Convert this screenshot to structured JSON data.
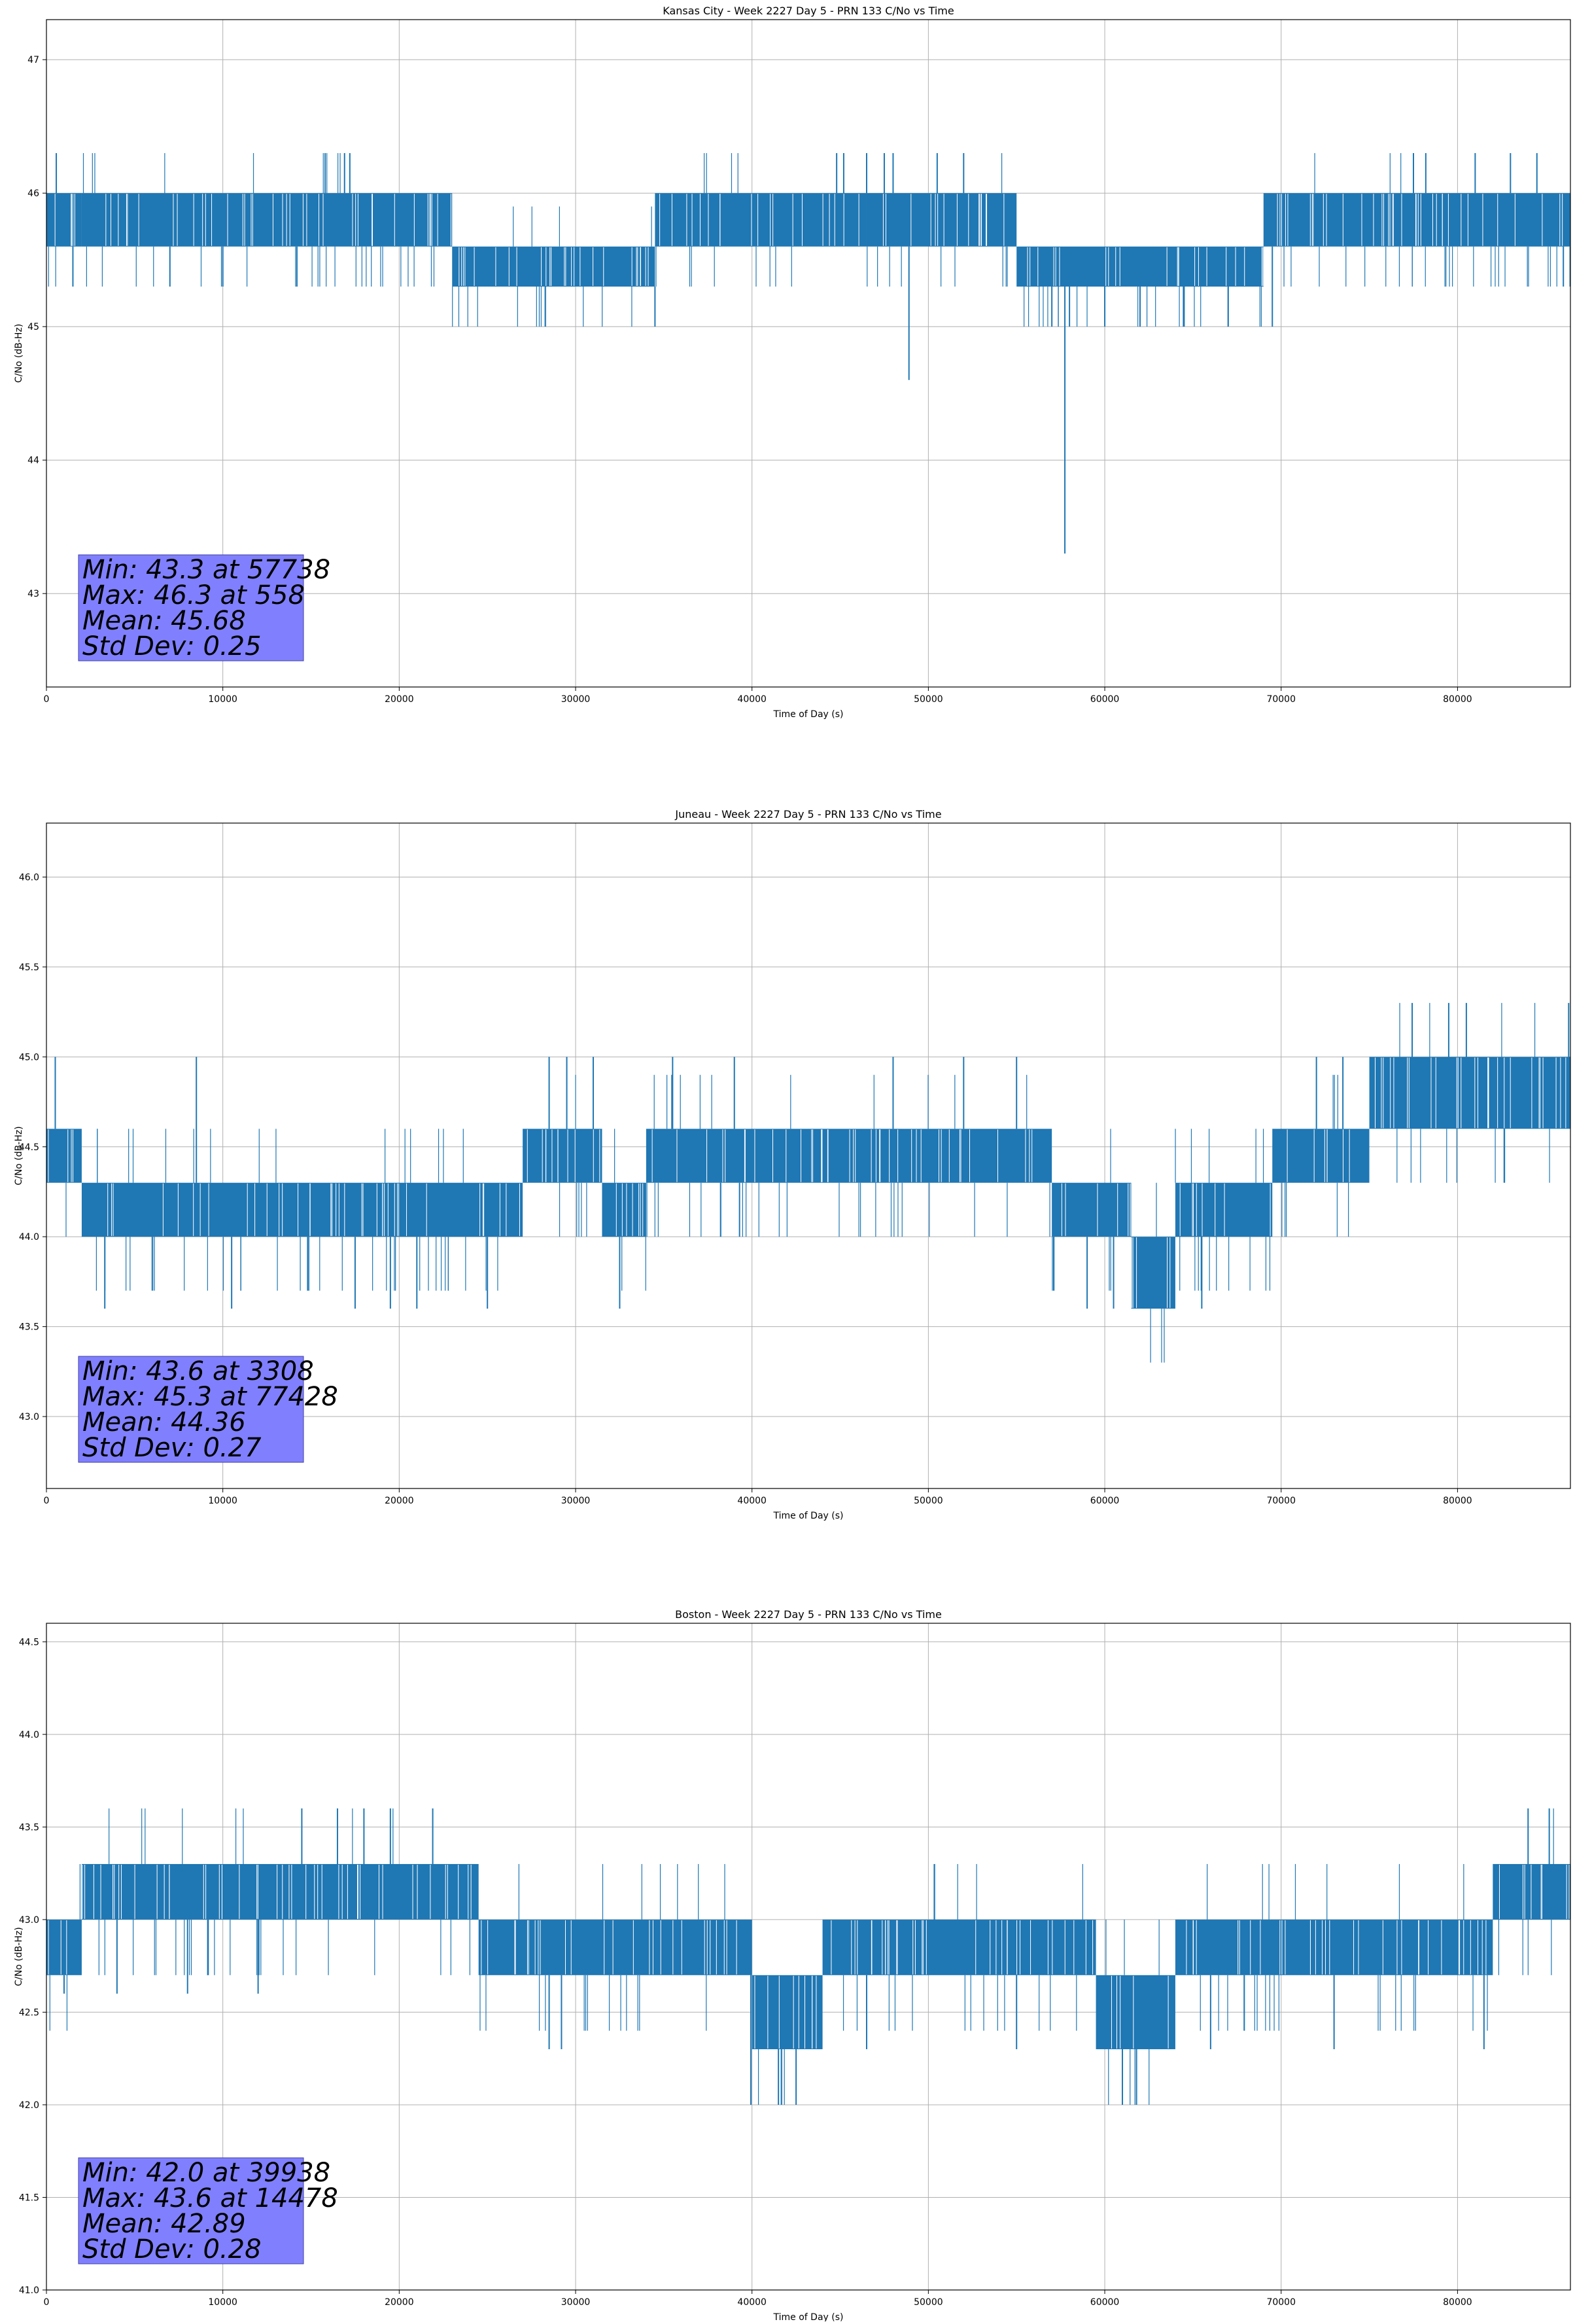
{
  "figure": {
    "background": "#ffffff",
    "series_color": "#1f77b4",
    "stats_box_color": "#8080ff",
    "grid_color": "#b0b0b0"
  },
  "chart_data": [
    {
      "type": "line",
      "title": "Kansas City - Week 2227 Day 5 - PRN 133 C/No vs Time",
      "xlabel": "Time of Day (s)",
      "ylabel": "C/No (dB-Hz)",
      "xlim": [
        0,
        86400
      ],
      "ylim": [
        42.3,
        47.3
      ],
      "xticks": [
        0,
        10000,
        20000,
        30000,
        40000,
        50000,
        60000,
        70000,
        80000
      ],
      "yticks": [
        43,
        44,
        45,
        46,
        47
      ],
      "ytick_decimals": 0,
      "grid": true,
      "quantization_step": 0.3,
      "segments": [
        {
          "x": [
            0,
            2000
          ],
          "levels": [
            45.6,
            46.0
          ]
        },
        {
          "x": [
            2000,
            23000
          ],
          "levels": [
            45.6,
            46.0
          ]
        },
        {
          "x": [
            23000,
            34500
          ],
          "levels": [
            45.3,
            45.6
          ]
        },
        {
          "x": [
            34500,
            46500
          ],
          "levels": [
            45.6,
            46.0
          ]
        },
        {
          "x": [
            46500,
            55000
          ],
          "levels": [
            45.6,
            46.0
          ]
        },
        {
          "x": [
            55000,
            69000
          ],
          "levels": [
            45.3,
            45.6
          ]
        },
        {
          "x": [
            69000,
            86400
          ],
          "levels": [
            45.6,
            46.0
          ]
        }
      ],
      "spikes": [
        {
          "x": 558,
          "y": 46.3
        },
        {
          "x": 1500,
          "y": 45.3
        },
        {
          "x": 7000,
          "y": 45.3
        },
        {
          "x": 10000,
          "y": 45.3
        },
        {
          "x": 14200,
          "y": 45.3
        },
        {
          "x": 15800,
          "y": 46.3
        },
        {
          "x": 16900,
          "y": 46.3
        },
        {
          "x": 17200,
          "y": 46.3
        },
        {
          "x": 25500,
          "y": 45.3
        },
        {
          "x": 34500,
          "y": 45.0
        },
        {
          "x": 44800,
          "y": 46.3
        },
        {
          "x": 45200,
          "y": 46.3
        },
        {
          "x": 46500,
          "y": 46.3
        },
        {
          "x": 47500,
          "y": 46.3
        },
        {
          "x": 48000,
          "y": 46.3
        },
        {
          "x": 48900,
          "y": 44.6
        },
        {
          "x": 50500,
          "y": 46.3
        },
        {
          "x": 52000,
          "y": 46.3
        },
        {
          "x": 57000,
          "y": 45.0
        },
        {
          "x": 57738,
          "y": 43.3
        },
        {
          "x": 58000,
          "y": 45.0
        },
        {
          "x": 60000,
          "y": 45.0
        },
        {
          "x": 62000,
          "y": 45.0
        },
        {
          "x": 64500,
          "y": 45.0
        },
        {
          "x": 67000,
          "y": 45.0
        },
        {
          "x": 69500,
          "y": 45.0
        },
        {
          "x": 77500,
          "y": 46.3
        },
        {
          "x": 78200,
          "y": 46.3
        },
        {
          "x": 81000,
          "y": 46.3
        },
        {
          "x": 83000,
          "y": 46.3
        },
        {
          "x": 84500,
          "y": 46.3
        },
        {
          "x": 86000,
          "y": 45.3
        }
      ],
      "stats": {
        "min": "Min: 43.3 at 57738",
        "max": "Max: 46.3 at 558",
        "mean": "Mean: 45.68",
        "std": "Std Dev: 0.25"
      }
    },
    {
      "type": "line",
      "title": "Juneau - Week 2227 Day 5 - PRN 133 C/No vs Time",
      "xlabel": "Time of Day (s)",
      "ylabel": "C/No (dB-Hz)",
      "xlim": [
        0,
        86400
      ],
      "ylim": [
        42.6,
        46.3
      ],
      "xticks": [
        0,
        10000,
        20000,
        30000,
        40000,
        50000,
        60000,
        70000,
        80000
      ],
      "yticks": [
        43.0,
        43.5,
        44.0,
        44.5,
        45.0,
        45.5,
        46.0
      ],
      "ytick_decimals": 1,
      "grid": true,
      "quantization_step": 0.3,
      "segments": [
        {
          "x": [
            0,
            2000
          ],
          "levels": [
            44.3,
            44.6
          ]
        },
        {
          "x": [
            2000,
            27000
          ],
          "levels": [
            44.0,
            44.3
          ]
        },
        {
          "x": [
            27000,
            31500
          ],
          "levels": [
            44.3,
            44.6
          ]
        },
        {
          "x": [
            31500,
            34000
          ],
          "levels": [
            44.0,
            44.3
          ]
        },
        {
          "x": [
            34000,
            57000
          ],
          "levels": [
            44.3,
            44.6
          ]
        },
        {
          "x": [
            57000,
            61500
          ],
          "levels": [
            44.0,
            44.3
          ]
        },
        {
          "x": [
            61500,
            64000
          ],
          "levels": [
            43.6,
            44.0
          ]
        },
        {
          "x": [
            64000,
            69500
          ],
          "levels": [
            44.0,
            44.3
          ]
        },
        {
          "x": [
            69500,
            75000
          ],
          "levels": [
            44.3,
            44.6
          ]
        },
        {
          "x": [
            75000,
            86400
          ],
          "levels": [
            44.6,
            45.0
          ]
        }
      ],
      "spikes": [
        {
          "x": 500,
          "y": 45.0
        },
        {
          "x": 3308,
          "y": 43.6
        },
        {
          "x": 8500,
          "y": 45.0
        },
        {
          "x": 10500,
          "y": 43.6
        },
        {
          "x": 17500,
          "y": 43.6
        },
        {
          "x": 19500,
          "y": 43.6
        },
        {
          "x": 21000,
          "y": 43.6
        },
        {
          "x": 25000,
          "y": 43.6
        },
        {
          "x": 28500,
          "y": 45.0
        },
        {
          "x": 29500,
          "y": 45.0
        },
        {
          "x": 31000,
          "y": 45.0
        },
        {
          "x": 32500,
          "y": 43.6
        },
        {
          "x": 35500,
          "y": 45.0
        },
        {
          "x": 39000,
          "y": 45.0
        },
        {
          "x": 48000,
          "y": 45.0
        },
        {
          "x": 52000,
          "y": 45.0
        },
        {
          "x": 55000,
          "y": 45.0
        },
        {
          "x": 59000,
          "y": 43.6
        },
        {
          "x": 60500,
          "y": 43.6
        },
        {
          "x": 65500,
          "y": 43.6
        },
        {
          "x": 72000,
          "y": 45.0
        },
        {
          "x": 73500,
          "y": 45.0
        },
        {
          "x": 77428,
          "y": 45.3
        },
        {
          "x": 79500,
          "y": 45.3
        },
        {
          "x": 80500,
          "y": 45.3
        },
        {
          "x": 86300,
          "y": 45.3
        }
      ],
      "stats": {
        "min": "Min: 43.6 at 3308",
        "max": "Max: 45.3 at 77428",
        "mean": "Mean: 44.36",
        "std": "Std Dev: 0.27"
      }
    },
    {
      "type": "line",
      "title": "Boston - Week 2227 Day 5 - PRN 133 C/No vs Time",
      "xlabel": "Time of Day (s)",
      "ylabel": "C/No (dB-Hz)",
      "xlim": [
        0,
        86400
      ],
      "ylim": [
        41.0,
        44.6
      ],
      "xticks": [
        0,
        10000,
        20000,
        30000,
        40000,
        50000,
        60000,
        70000,
        80000
      ],
      "yticks": [
        41.0,
        41.5,
        42.0,
        42.5,
        43.0,
        43.5,
        44.0,
        44.5
      ],
      "ytick_decimals": 1,
      "grid": true,
      "quantization_step": 0.3,
      "segments": [
        {
          "x": [
            0,
            2000
          ],
          "levels": [
            42.7,
            43.0
          ]
        },
        {
          "x": [
            2000,
            24500
          ],
          "levels": [
            43.0,
            43.3
          ]
        },
        {
          "x": [
            24500,
            40000
          ],
          "levels": [
            42.7,
            43.0
          ]
        },
        {
          "x": [
            40000,
            44000
          ],
          "levels": [
            42.3,
            42.7
          ]
        },
        {
          "x": [
            44000,
            59500
          ],
          "levels": [
            42.7,
            43.0
          ]
        },
        {
          "x": [
            59500,
            64000
          ],
          "levels": [
            42.3,
            42.7
          ]
        },
        {
          "x": [
            64000,
            82000
          ],
          "levels": [
            42.7,
            43.0
          ]
        },
        {
          "x": [
            82000,
            86400
          ],
          "levels": [
            43.0,
            43.3
          ]
        }
      ],
      "spikes": [
        {
          "x": 1000,
          "y": 42.6
        },
        {
          "x": 4000,
          "y": 42.6
        },
        {
          "x": 8000,
          "y": 42.6
        },
        {
          "x": 12000,
          "y": 42.6
        },
        {
          "x": 14478,
          "y": 43.6
        },
        {
          "x": 16500,
          "y": 43.6
        },
        {
          "x": 18000,
          "y": 43.6
        },
        {
          "x": 19500,
          "y": 43.6
        },
        {
          "x": 21900,
          "y": 43.6
        },
        {
          "x": 28500,
          "y": 42.3
        },
        {
          "x": 29200,
          "y": 42.3
        },
        {
          "x": 39938,
          "y": 42.0
        },
        {
          "x": 41500,
          "y": 42.0
        },
        {
          "x": 42500,
          "y": 42.0
        },
        {
          "x": 46500,
          "y": 42.3
        },
        {
          "x": 55000,
          "y": 42.3
        },
        {
          "x": 61000,
          "y": 42.0
        },
        {
          "x": 61800,
          "y": 42.0
        },
        {
          "x": 66000,
          "y": 42.3
        },
        {
          "x": 73000,
          "y": 42.3
        },
        {
          "x": 81500,
          "y": 42.3
        },
        {
          "x": 84000,
          "y": 43.6
        },
        {
          "x": 85200,
          "y": 43.6
        }
      ],
      "stats": {
        "min": "Min: 42.0 at 39938",
        "max": "Max: 43.6 at 14478",
        "mean": "Mean: 42.89",
        "std": "Std Dev: 0.28"
      }
    }
  ]
}
